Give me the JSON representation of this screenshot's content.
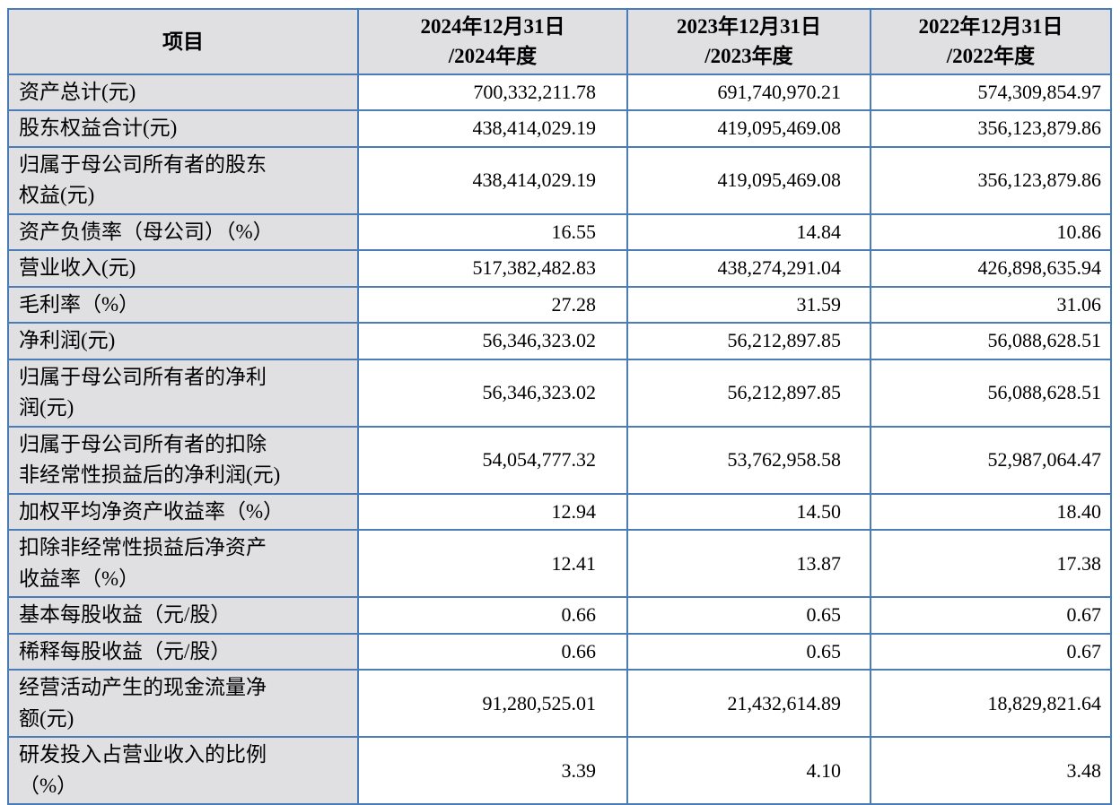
{
  "table": {
    "header": {
      "item_label": "项目",
      "period_columns": [
        "2024年12月31日\n/2024年度",
        "2023年12月31日\n/2023年度",
        "2022年12月31日\n/2022年度"
      ]
    },
    "rows": [
      {
        "label": "资产总计(元)",
        "values": [
          "700,332,211.78",
          "691,740,970.21",
          "574,309,854.97"
        ]
      },
      {
        "label": "股东权益合计(元)",
        "values": [
          "438,414,029.19",
          "419,095,469.08",
          "356,123,879.86"
        ]
      },
      {
        "label": "归属于母公司所有者的股东\n权益(元)",
        "values": [
          "438,414,029.19",
          "419,095,469.08",
          "356,123,879.86"
        ]
      },
      {
        "label": "资产负债率（母公司）（%）",
        "values": [
          "16.55",
          "14.84",
          "10.86"
        ]
      },
      {
        "label": "营业收入(元)",
        "values": [
          "517,382,482.83",
          "438,274,291.04",
          "426,898,635.94"
        ]
      },
      {
        "label": "毛利率（%）",
        "values": [
          "27.28",
          "31.59",
          "31.06"
        ]
      },
      {
        "label": "净利润(元)",
        "values": [
          "56,346,323.02",
          "56,212,897.85",
          "56,088,628.51"
        ]
      },
      {
        "label": "归属于母公司所有者的净利\n润(元)",
        "values": [
          "56,346,323.02",
          "56,212,897.85",
          "56,088,628.51"
        ]
      },
      {
        "label": "归属于母公司所有者的扣除\n非经常性损益后的净利润(元)",
        "values": [
          "54,054,777.32",
          "53,762,958.58",
          "52,987,064.47"
        ]
      },
      {
        "label": "加权平均净资产收益率（%）",
        "values": [
          "12.94",
          "14.50",
          "18.40"
        ]
      },
      {
        "label": "扣除非经常性损益后净资产\n收益率（%）",
        "values": [
          "12.41",
          "13.87",
          "17.38"
        ]
      },
      {
        "label": "基本每股收益（元/股）",
        "values": [
          "0.66",
          "0.65",
          "0.67"
        ]
      },
      {
        "label": "稀释每股收益（元/股）",
        "values": [
          "0.66",
          "0.65",
          "0.67"
        ]
      },
      {
        "label": "经营活动产生的现金流量净\n额(元)",
        "values": [
          "91,280,525.01",
          "21,432,614.89",
          "18,829,821.64"
        ]
      },
      {
        "label": "研发投入占营业收入的比例\n（%）",
        "values": [
          "3.39",
          "4.10",
          "3.48"
        ]
      }
    ],
    "colors": {
      "border": "#4a7db8",
      "header_bg": "#e0e0e2",
      "label_bg": "#e0e0e2",
      "value_bg": "#ffffff",
      "text": "#000000"
    }
  }
}
